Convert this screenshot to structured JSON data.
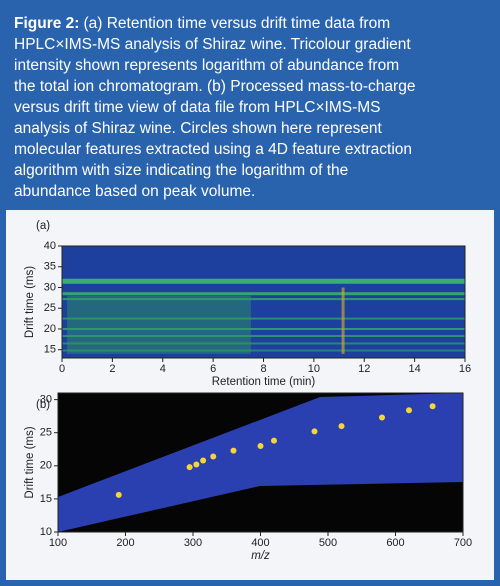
{
  "caption": {
    "label": "Figure 2:",
    "lines": [
      "(a) Retention time versus drift time data from",
      "HPLC×IMS-MS analysis of Shiraz wine. Tricolour gradient",
      "intensity shown represents logarithm of abundance from",
      "the total ion chromatogram. (b) Processed mass-to-charge",
      "versus drift time view of data file from HPLC×IMS-MS",
      "analysis of Shiraz wine. Circles shown here represent",
      "molecular features extracted using a 4D feature extraction",
      "algorithm with size indicating the logarithm of the",
      "abundance based on peak volume."
    ]
  },
  "chart_data": [
    {
      "type": "heatmap",
      "panel": "(a)",
      "x_label": "Retention time (min)",
      "y_label": "Drift time (ms)",
      "xlim": [
        0,
        16
      ],
      "xticks": [
        0,
        2,
        4,
        6,
        8,
        10,
        12,
        14,
        16
      ],
      "ylim": [
        13,
        40
      ],
      "yticks": [
        15,
        20,
        25,
        30,
        35,
        40
      ]
    },
    {
      "type": "scatter",
      "panel": "(b)",
      "x_label": "m/z",
      "y_label": "Drift time (ms)",
      "xlim": [
        100,
        700
      ],
      "xticks": [
        100,
        200,
        300,
        400,
        500,
        600,
        700
      ],
      "ylim": [
        10,
        31
      ],
      "yticks": [
        10,
        15,
        20,
        25,
        30
      ],
      "color": "#f5d63a",
      "x": [
        190,
        295,
        305,
        315,
        330,
        360,
        400,
        420,
        480,
        520,
        580,
        620,
        655
      ],
      "values": [
        15.6,
        19.8,
        20.2,
        20.8,
        21.4,
        22.3,
        23.0,
        23.8,
        25.2,
        26.0,
        27.3,
        28.4,
        29.0
      ]
    }
  ]
}
